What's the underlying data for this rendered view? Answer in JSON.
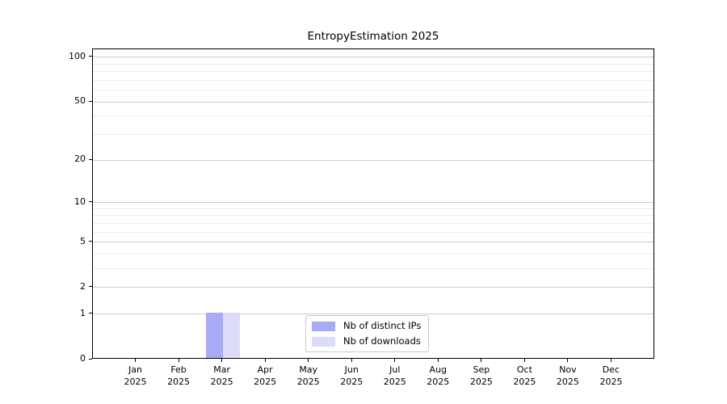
{
  "chart_data": {
    "type": "bar",
    "title": "EntropyEstimation 2025",
    "categories": [
      "Jan",
      "Feb",
      "Mar",
      "Apr",
      "May",
      "Jun",
      "Jul",
      "Aug",
      "Sep",
      "Oct",
      "Nov",
      "Dec"
    ],
    "x_tick_year": "2025",
    "series": [
      {
        "name": "Nb of distinct IPs",
        "color": "#a9a9f4",
        "values": [
          0,
          0,
          1,
          0,
          0,
          0,
          0,
          0,
          0,
          0,
          0,
          0
        ]
      },
      {
        "name": "Nb of downloads",
        "color": "#dcdcf8",
        "values": [
          0,
          0,
          1,
          0,
          0,
          0,
          0,
          0,
          0,
          0,
          0,
          0
        ]
      }
    ],
    "yscale": "log1p",
    "ylim": [
      0,
      113
    ],
    "yticks": [
      0,
      1,
      2,
      5,
      10,
      20,
      50,
      100
    ],
    "yticks_minor": [
      3,
      4,
      6,
      7,
      8,
      9,
      30,
      40,
      60,
      70,
      80,
      90
    ],
    "grid": "horizontal",
    "legend_position": "lower center",
    "colors": {
      "major_grid": "#cccccc",
      "minor_grid": "#ececec",
      "spine": "#000000",
      "text": "#000000",
      "background": "#ffffff"
    }
  }
}
